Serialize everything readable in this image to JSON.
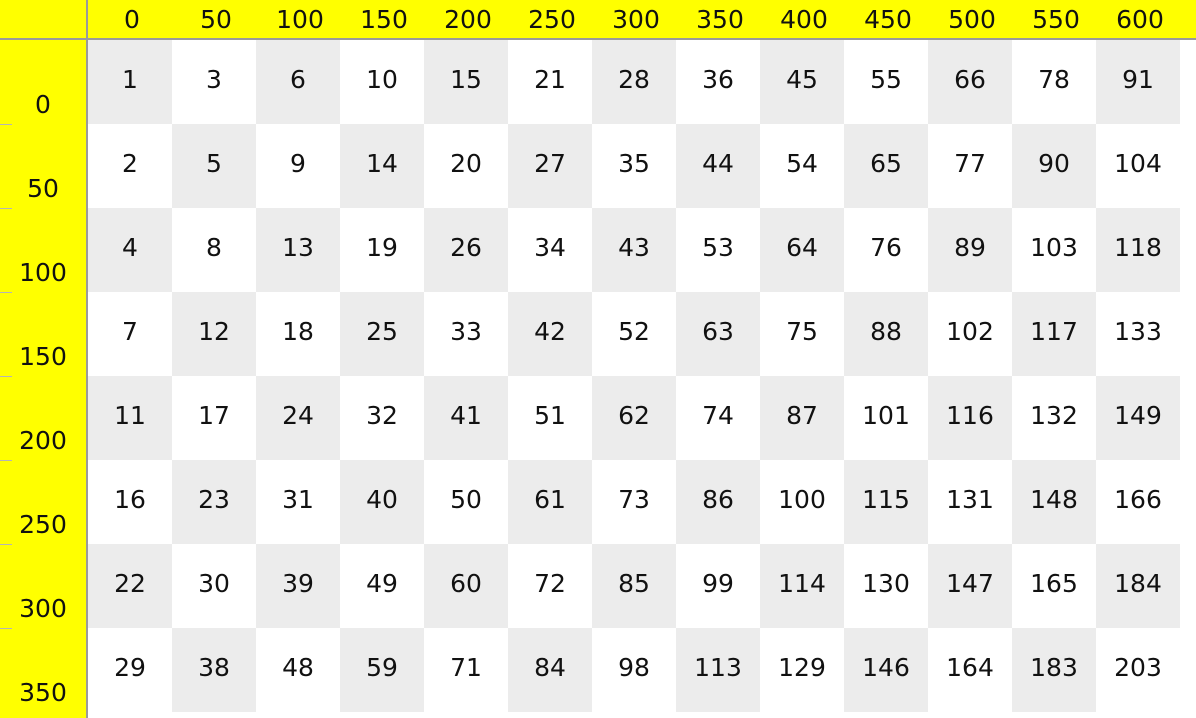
{
  "column_headers": [
    "0",
    "50",
    "100",
    "150",
    "200",
    "250",
    "300",
    "350",
    "400",
    "450",
    "500",
    "550",
    "600"
  ],
  "row_headers": [
    "0",
    "50",
    "100",
    "150",
    "200",
    "250",
    "300",
    "350"
  ],
  "cells": [
    [
      "1",
      "3",
      "6",
      "10",
      "15",
      "21",
      "28",
      "36",
      "45",
      "55",
      "66",
      "78",
      "91"
    ],
    [
      "2",
      "5",
      "9",
      "14",
      "20",
      "27",
      "35",
      "44",
      "54",
      "65",
      "77",
      "90",
      "104"
    ],
    [
      "4",
      "8",
      "13",
      "19",
      "26",
      "34",
      "43",
      "53",
      "64",
      "76",
      "89",
      "103",
      "118"
    ],
    [
      "7",
      "12",
      "18",
      "25",
      "33",
      "42",
      "52",
      "63",
      "75",
      "88",
      "102",
      "117",
      "133"
    ],
    [
      "11",
      "17",
      "24",
      "32",
      "41",
      "51",
      "62",
      "74",
      "87",
      "101",
      "116",
      "132",
      "149"
    ],
    [
      "16",
      "23",
      "31",
      "40",
      "50",
      "61",
      "73",
      "86",
      "100",
      "115",
      "131",
      "148",
      "166"
    ],
    [
      "22",
      "30",
      "39",
      "49",
      "60",
      "72",
      "85",
      "99",
      "114",
      "130",
      "147",
      "165",
      "184"
    ],
    [
      "29",
      "38",
      "48",
      "59",
      "71",
      "84",
      "98",
      "113",
      "129",
      "146",
      "164",
      "183",
      "203"
    ]
  ],
  "colors": {
    "header_background": "#ffff00",
    "shaded_cell": "#ececec",
    "plain_cell": "#ffffff",
    "separator": "#9a9a9a"
  }
}
